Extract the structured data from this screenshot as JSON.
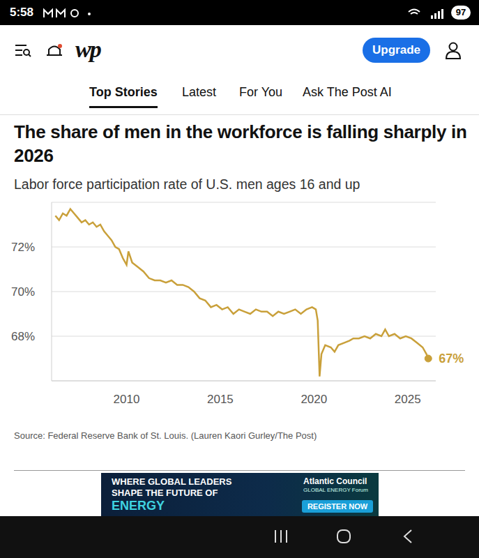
{
  "status_bar": {
    "time": "5:58",
    "battery": "97"
  },
  "header": {
    "logo": "wp",
    "button": "Upgrade"
  },
  "tabs": [
    "Top Stories",
    "Latest",
    "For You",
    "Ask The Post AI"
  ],
  "chart_data": {
    "type": "line",
    "title": "The share of men in the workforce is falling sharply in 2026",
    "subtitle": "Labor force participation rate of U.S. men ages 16 and up",
    "x": [
      2006.2,
      2006.4,
      2006.6,
      2006.8,
      2007.0,
      2007.2,
      2007.4,
      2007.6,
      2007.8,
      2008.0,
      2008.2,
      2008.4,
      2008.6,
      2008.8,
      2009.0,
      2009.2,
      2009.4,
      2009.6,
      2009.8,
      2010.0,
      2010.1,
      2010.3,
      2010.6,
      2010.9,
      2011.2,
      2011.5,
      2011.8,
      2012.1,
      2012.4,
      2012.7,
      2013.0,
      2013.3,
      2013.6,
      2013.9,
      2014.2,
      2014.5,
      2014.8,
      2015.1,
      2015.4,
      2015.7,
      2016.0,
      2016.3,
      2016.6,
      2016.9,
      2017.2,
      2017.5,
      2017.8,
      2018.1,
      2018.4,
      2018.7,
      2019.0,
      2019.3,
      2019.6,
      2019.9,
      2020.1,
      2020.2,
      2020.3,
      2020.4,
      2020.6,
      2020.9,
      2021.1,
      2021.3,
      2021.6,
      2021.9,
      2022.1,
      2022.4,
      2022.7,
      2023.0,
      2023.3,
      2023.6,
      2023.8,
      2024.0,
      2024.3,
      2024.6,
      2024.9,
      2025.2,
      2025.5,
      2025.8,
      2026.0,
      2026.1
    ],
    "values": [
      73.4,
      73.2,
      73.5,
      73.4,
      73.7,
      73.5,
      73.3,
      73.1,
      73.2,
      73.0,
      73.1,
      72.9,
      73.0,
      72.7,
      72.5,
      72.3,
      72.0,
      71.9,
      71.5,
      71.2,
      71.8,
      71.3,
      71.1,
      70.9,
      70.6,
      70.5,
      70.5,
      70.4,
      70.5,
      70.3,
      70.3,
      70.2,
      70.0,
      69.7,
      69.6,
      69.3,
      69.4,
      69.2,
      69.3,
      69.0,
      69.2,
      69.1,
      69.0,
      69.2,
      69.1,
      69.1,
      68.9,
      69.1,
      69.0,
      69.1,
      69.2,
      69.0,
      69.2,
      69.3,
      69.2,
      68.7,
      66.2,
      67.2,
      67.6,
      67.5,
      67.3,
      67.6,
      67.7,
      67.8,
      67.9,
      67.9,
      68.0,
      67.9,
      68.1,
      68.0,
      68.3,
      68.0,
      68.1,
      67.9,
      68.0,
      67.9,
      67.7,
      67.5,
      67.2,
      67.0
    ],
    "color": "#c9a03a",
    "xlim": [
      2006,
      2026.5
    ],
    "xticks": [
      2010,
      2015,
      2020,
      2025
    ],
    "ylim": [
      66,
      74
    ],
    "yticks": [
      {
        "value": 68,
        "label": "68%"
      },
      {
        "value": 70,
        "label": "70%"
      },
      {
        "value": 72,
        "label": "72%"
      }
    ],
    "grid": true,
    "annotation": {
      "x": 2026.1,
      "y": 67.0,
      "text": "67%"
    },
    "source": "Source: Federal Reserve Bank of St. Louis. (Lauren Kaori Gurley/The Post)"
  },
  "ad": {
    "lines": [
      "WHERE GLOBAL LEADERS",
      "SHAPE THE FUTURE OF"
    ],
    "highlight": "ENERGY",
    "brand": "Atlantic Council",
    "event": "GLOBAL ENERGY Forum",
    "button": "REGISTER NOW"
  }
}
